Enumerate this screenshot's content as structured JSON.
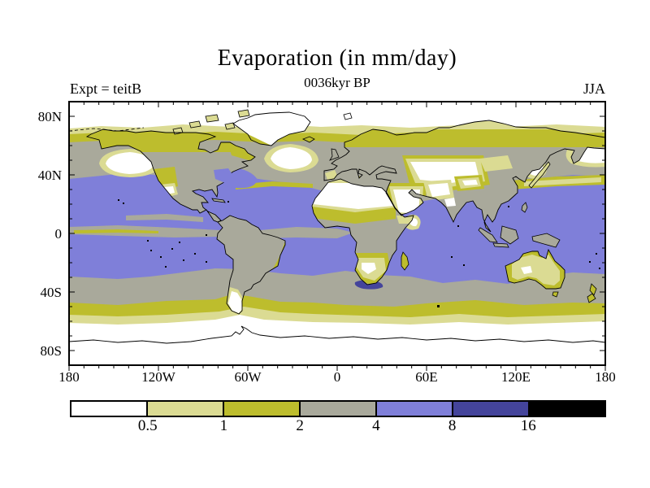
{
  "figure": {
    "title": "Evaporation (in mm/day)",
    "subtitle": "0036kyr BP",
    "experiment_label": "Expt = teitB",
    "season_label": "JJA"
  },
  "axes": {
    "x_ticks": [
      {
        "label": "180",
        "deg": -180
      },
      {
        "label": "120W",
        "deg": -120
      },
      {
        "label": "60W",
        "deg": -60
      },
      {
        "label": "0",
        "deg": 0
      },
      {
        "label": "60E",
        "deg": 60
      },
      {
        "label": "120E",
        "deg": 120
      },
      {
        "label": "180",
        "deg": 180
      }
    ],
    "y_ticks": [
      {
        "label": "80N",
        "deg": 80
      },
      {
        "label": "40N",
        "deg": 40
      },
      {
        "label": "0",
        "deg": 0
      },
      {
        "label": "40S",
        "deg": -40
      },
      {
        "label": "80S",
        "deg": -80
      }
    ],
    "minor_tick_interval_deg": 10
  },
  "colorbar": {
    "boundary_labels": [
      "0.5",
      "1",
      "2",
      "4",
      "8",
      "16"
    ],
    "segment_colors": [
      "#ffffff",
      "#dbdb93",
      "#bdbd2d",
      "#a9a99b",
      "#7f7fd9",
      "#44449b",
      "#000000"
    ]
  },
  "chart_data": {
    "type": "filled_contour_map",
    "variable": "Evaporation",
    "units": "mm/day",
    "title": "Evaporation (in mm/day)",
    "time_label": "0036kyr BP",
    "experiment": "teitB",
    "season": "JJA",
    "projection": "equirectangular",
    "lon_range": [
      -180,
      180
    ],
    "lat_range": [
      -90,
      90
    ],
    "contour_levels": [
      0.5,
      1,
      2,
      4,
      8,
      16
    ],
    "bins": [
      {
        "label": "< 0.5",
        "color": "#ffffff"
      },
      {
        "label": "0.5-1",
        "color": "#dbdb93"
      },
      {
        "label": "1-2",
        "color": "#bdbd2d"
      },
      {
        "label": "2-4",
        "color": "#a9a99b"
      },
      {
        "label": "4-8",
        "color": "#7f7fd9"
      },
      {
        "label": "8-16",
        "color": "#44449b"
      },
      {
        "label": "> 16",
        "color": "#000000"
      }
    ],
    "zonal_pattern": [
      {
        "lat_band": "90N-72N",
        "typical_value_mm_day": "< 0.5"
      },
      {
        "lat_band": "72N-60N",
        "typical_value_mm_day": "0.5-2"
      },
      {
        "lat_band": "60N-40N",
        "typical_value_mm_day": "2-4"
      },
      {
        "lat_band": "40N-30S oceans",
        "typical_value_mm_day": "4-8"
      },
      {
        "lat_band": "equatorial east Pacific and Atlantic cold tongues",
        "typical_value_mm_day": "2-4"
      },
      {
        "lat_band": "30S-48S",
        "typical_value_mm_day": "2-4"
      },
      {
        "lat_band": "48S-60S",
        "typical_value_mm_day": "1-2"
      },
      {
        "lat_band": "60S-90S",
        "typical_value_mm_day": "< 0.5"
      }
    ],
    "notable_features": [
      "Sahara, Arabian and central Asian deserts below 0.5",
      "Subtropical ocean maxima 4-8 (blue) in both hemispheres",
      "Small 8-16 patch in SW Indian Ocean near Agulhas region",
      "White minima over Gulf of Alaska, subpolar North Atlantic, Bering Sea and Sea of Japan",
      "Australian interior 0.5-1 with 1-2 rim",
      "Antarctica and Arctic below 0.5"
    ]
  }
}
